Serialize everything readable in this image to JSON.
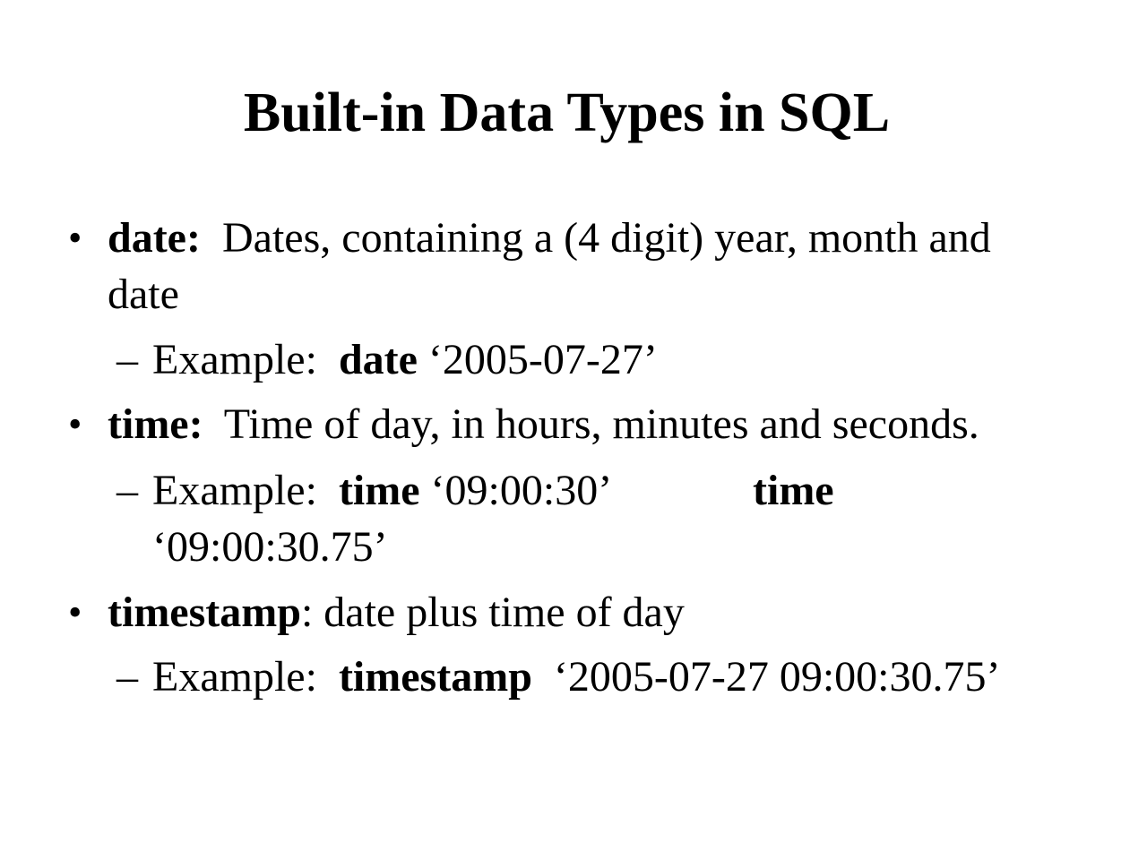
{
  "title": "Built-in Data Types in SQL",
  "bullets": [
    {
      "term": "date:",
      "text_line1": "  Dates, containing a (4 digit) year, month and",
      "text_line2": "date",
      "example": {
        "label": "Example:  ",
        "keyword": "date",
        "value": " ‘2005-07-27’"
      }
    },
    {
      "term": "time:",
      "text_line1": "  Time of day, in hours, minutes and seconds.",
      "example": {
        "label": "Example:  ",
        "keyword": "time",
        "value": " ‘09:00:30’",
        "keyword2": "time",
        "value2": "‘09:00:30.75’"
      }
    },
    {
      "term": "timestamp",
      "text_line1": ": date plus time of day",
      "example": {
        "label": "Example:  ",
        "keyword": "timestamp",
        "value": "  ‘2005-07-27 09:00:30.75’"
      }
    }
  ],
  "bullet_glyph": "•",
  "dash_glyph": "–"
}
